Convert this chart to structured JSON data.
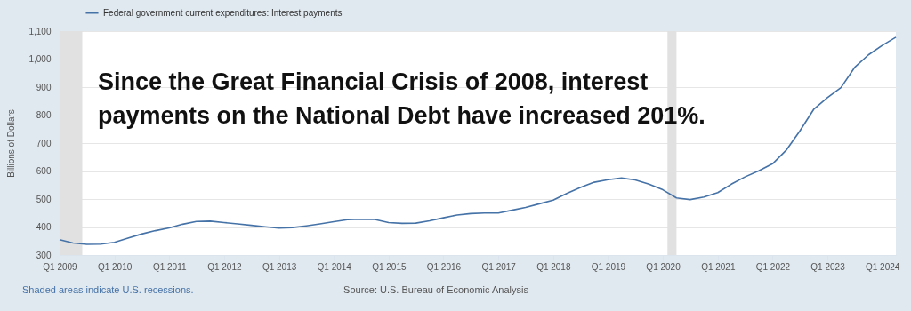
{
  "chart_data": {
    "type": "line",
    "ylabel": "Billions of Dollars",
    "x": [
      "2009-01",
      "2009-04",
      "2009-07",
      "2009-10",
      "2010-01",
      "2010-04",
      "2010-07",
      "2010-10",
      "2011-01",
      "2011-04",
      "2011-07",
      "2011-10",
      "2012-01",
      "2012-04",
      "2012-07",
      "2012-10",
      "2013-01",
      "2013-04",
      "2013-07",
      "2013-10",
      "2014-01",
      "2014-04",
      "2014-07",
      "2014-10",
      "2015-01",
      "2015-04",
      "2015-07",
      "2015-10",
      "2016-01",
      "2016-04",
      "2016-07",
      "2016-10",
      "2017-01",
      "2017-04",
      "2017-07",
      "2017-10",
      "2018-01",
      "2018-04",
      "2018-07",
      "2018-10",
      "2019-01",
      "2019-04",
      "2019-07",
      "2019-10",
      "2020-01",
      "2020-04",
      "2020-07",
      "2020-10",
      "2021-01",
      "2021-04",
      "2021-07",
      "2021-10",
      "2022-01",
      "2022-04",
      "2022-07",
      "2022-10",
      "2023-01",
      "2023-04",
      "2023-07",
      "2023-10",
      "2024-01",
      "2024-04"
    ],
    "series": [
      {
        "name": "Federal government current expenditures: Interest payments",
        "color": "#4572a7",
        "values": [
          355,
          343,
          338,
          339,
          345,
          360,
          375,
          387,
          397,
          410,
          420,
          421,
          416,
          411,
          406,
          401,
          396,
          398,
          404,
          411,
          419,
          426,
          428,
          427,
          416,
          413,
          414,
          422,
          433,
          443,
          448,
          450,
          450,
          460,
          470,
          483,
          496,
          520,
          541,
          560,
          569,
          575,
          568,
          553,
          533,
          504,
          498,
          507,
          523,
          553,
          579,
          601,
          626,
          674,
          743,
          820,
          862,
          898,
          970,
          1015,
          1049,
          1078
        ]
      }
    ],
    "xlim": [
      "2009-01",
      "2024-04"
    ],
    "xticks": [
      {
        "value": "2009-01",
        "label": "Q1 2009"
      },
      {
        "value": "2010-01",
        "label": "Q1 2010"
      },
      {
        "value": "2011-01",
        "label": "Q1 2011"
      },
      {
        "value": "2012-01",
        "label": "Q1 2012"
      },
      {
        "value": "2013-01",
        "label": "Q1 2013"
      },
      {
        "value": "2014-01",
        "label": "Q1 2014"
      },
      {
        "value": "2015-01",
        "label": "Q1 2015"
      },
      {
        "value": "2016-01",
        "label": "Q1 2016"
      },
      {
        "value": "2017-01",
        "label": "Q1 2017"
      },
      {
        "value": "2018-01",
        "label": "Q1 2018"
      },
      {
        "value": "2019-01",
        "label": "Q1 2019"
      },
      {
        "value": "2020-01",
        "label": "Q1 2020"
      },
      {
        "value": "2021-01",
        "label": "Q1 2021"
      },
      {
        "value": "2022-01",
        "label": "Q1 2022"
      },
      {
        "value": "2023-01",
        "label": "Q1 2023"
      },
      {
        "value": "2024-01",
        "label": "Q1 2024"
      }
    ],
    "ylim": [
      300,
      1100
    ],
    "yticks": [
      300,
      400,
      500,
      600,
      700,
      800,
      900,
      {
        "value": 1000,
        "label": "1,000"
      },
      {
        "value": 1100,
        "label": "1,100"
      }
    ],
    "grid": "y",
    "legend": "top left",
    "bands": [
      {
        "axis": "x",
        "from": "2009-01",
        "to": "2009-06",
        "color": "#e1e1e1"
      },
      {
        "axis": "x",
        "from": "2020-02",
        "to": "2020-04",
        "color": "#e1e1e1"
      }
    ],
    "annotations": [
      "Since the Great Financial Crisis of 2008, interest payments on the National Debt have increased 201%.",
      "Shaded areas indicate U.S. recessions.",
      "Source: U.S. Bureau of Economic Analysis"
    ]
  }
}
